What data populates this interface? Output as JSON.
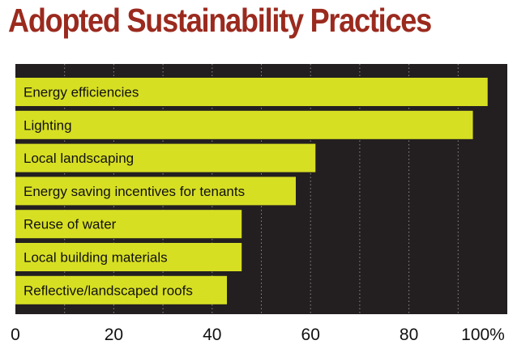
{
  "colors": {
    "title": "#9b2a1e",
    "plot_background": "#231f20",
    "bar": "#d7df23",
    "bar_label": "#111111",
    "grid": "#8a8a8a"
  },
  "chart_data": {
    "type": "bar",
    "orientation": "horizontal",
    "title": "Adopted Sustainability Practices",
    "xlabel": "",
    "ylabel": "",
    "categories": [
      "Energy efficiencies",
      "Lighting",
      "Local landscaping",
      "Energy saving incentives for tenants",
      "Reuse of water",
      "Local building materials",
      "Reflective/landscaped roofs"
    ],
    "values": [
      96,
      93,
      61,
      57,
      46,
      46,
      43
    ],
    "xlim": [
      0,
      100
    ],
    "x_ticks": [
      0,
      20,
      40,
      60,
      80,
      100
    ],
    "x_tick_labels": [
      "0",
      "20",
      "40",
      "60",
      "80",
      "100%"
    ],
    "grid": "vertical dotted every 10",
    "legend": "none",
    "bar_labels_inside": true
  }
}
